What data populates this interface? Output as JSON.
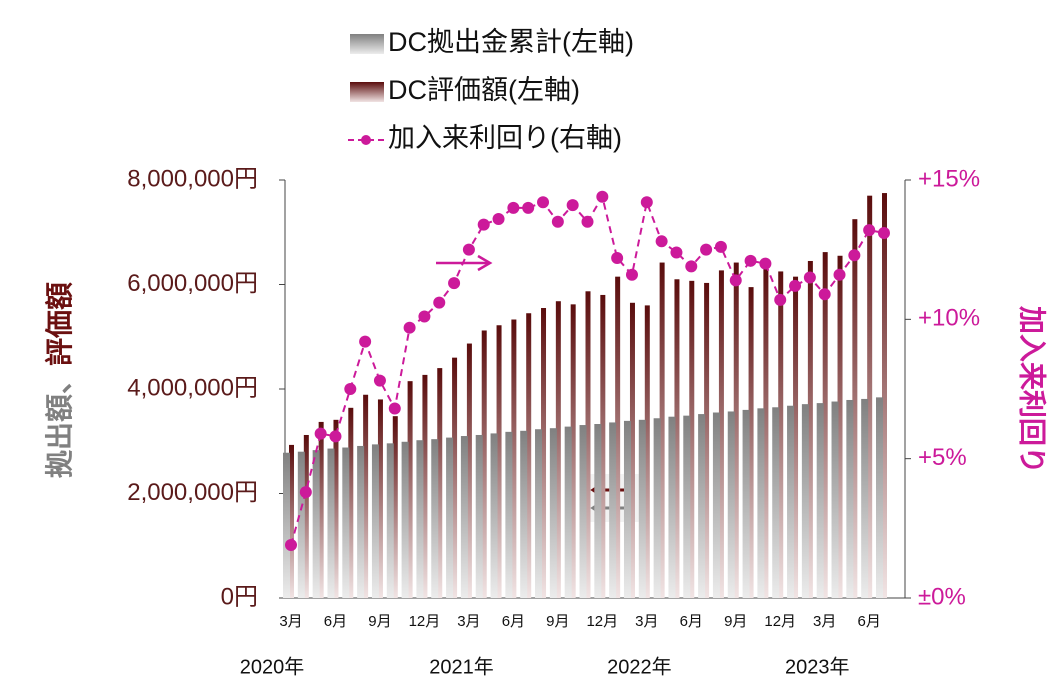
{
  "chart_data": {
    "type": "bar_line",
    "legend": [
      "DC拠出金累計(左軸)",
      "DC評価額(左軸)",
      "加入来利回り(右軸)"
    ],
    "ylabel_parts": [
      "拠出額、",
      "評価額"
    ],
    "y2label": "加入来利回り",
    "categories": [
      "3月",
      null,
      null,
      "6月",
      null,
      null,
      "9月",
      null,
      null,
      "12月",
      null,
      null,
      "3月",
      null,
      null,
      "6月",
      null,
      null,
      "9月",
      null,
      null,
      "12月",
      null,
      null,
      "3月",
      null,
      null,
      "6月",
      null,
      null,
      "9月",
      null,
      null,
      "12月",
      null,
      null,
      "3月",
      null,
      null,
      "6月",
      null
    ],
    "year_labels": [
      "2020年",
      "2021年",
      "2022年",
      "2023年"
    ],
    "series": [
      {
        "name": "DC拠出金累計(左軸)",
        "color": "#808080",
        "axis": "y",
        "values": [
          2780000,
          2800000,
          2830000,
          2860000,
          2880000,
          2910000,
          2940000,
          2960000,
          2990000,
          3020000,
          3040000,
          3070000,
          3100000,
          3120000,
          3150000,
          3180000,
          3200000,
          3230000,
          3250000,
          3280000,
          3310000,
          3330000,
          3360000,
          3390000,
          3410000,
          3440000,
          3470000,
          3490000,
          3520000,
          3550000,
          3570000,
          3600000,
          3630000,
          3650000,
          3680000,
          3710000,
          3730000,
          3760000,
          3790000,
          3810000,
          3840000
        ]
      },
      {
        "name": "DC評価額(左軸)",
        "color": "#6b1010",
        "axis": "y",
        "values": [
          2930000,
          3120000,
          3370000,
          3410000,
          3640000,
          3890000,
          3800000,
          3480000,
          4150000,
          4270000,
          4400000,
          4600000,
          4870000,
          5120000,
          5220000,
          5330000,
          5450000,
          5550000,
          5680000,
          5620000,
          5870000,
          5800000,
          6150000,
          5650000,
          5600000,
          6420000,
          6100000,
          6070000,
          6030000,
          6270000,
          6420000,
          5950000,
          6330000,
          6250000,
          6150000,
          6450000,
          6620000,
          6550000,
          7250000,
          7700000,
          7750000
        ]
      },
      {
        "name": "加入来利回り(右軸)",
        "color": "#cc1a9a",
        "axis": "y2",
        "values": [
          1.9,
          3.8,
          5.9,
          5.8,
          7.5,
          9.2,
          7.8,
          6.8,
          9.7,
          10.1,
          10.6,
          11.3,
          12.5,
          13.4,
          13.6,
          14.0,
          14.0,
          14.2,
          13.5,
          14.1,
          13.5,
          14.4,
          12.2,
          11.6,
          14.2,
          12.8,
          12.4,
          11.9,
          12.5,
          12.6,
          11.4,
          12.1,
          12.0,
          10.7,
          11.2,
          11.5,
          10.9,
          11.6,
          12.3,
          13.2,
          13.1
        ]
      }
    ],
    "ylim": [
      0,
      8000000
    ],
    "yticks": [
      {
        "value": 0,
        "label": "0円"
      },
      {
        "value": 2000000,
        "label": "2,000,000円"
      },
      {
        "value": 4000000,
        "label": "4,000,000円"
      },
      {
        "value": 6000000,
        "label": "6,000,000円"
      },
      {
        "value": 8000000,
        "label": "8,000,000円"
      }
    ],
    "y2lim": [
      0,
      15
    ],
    "y2ticks": [
      {
        "value": 0,
        "label": "±0%"
      },
      {
        "value": 5,
        "label": "+5%"
      },
      {
        "value": 10,
        "label": "+10%"
      },
      {
        "value": 15,
        "label": "+15%"
      }
    ],
    "grid": false
  }
}
